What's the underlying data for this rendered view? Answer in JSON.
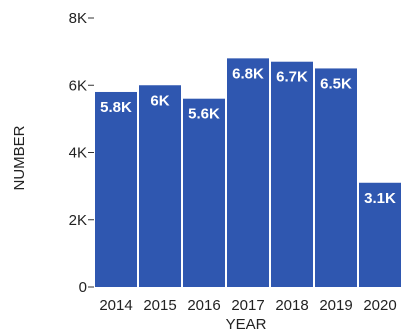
{
  "chart_data": {
    "type": "bar",
    "xlabel": "YEAR",
    "ylabel": "NUMBER",
    "categories": [
      "2014",
      "2015",
      "2016",
      "2017",
      "2018",
      "2019",
      "2020"
    ],
    "values": [
      5800,
      6000,
      5600,
      6800,
      6700,
      6500,
      3100
    ],
    "data_labels": [
      "5.8K",
      "6K",
      "5.6K",
      "6.8K",
      "6.7K",
      "6.5K",
      "3.1K"
    ],
    "ylim": [
      0,
      8000
    ],
    "yticks": [
      0,
      2000,
      4000,
      6000,
      8000
    ],
    "ytick_labels": [
      "0",
      "2K",
      "4K",
      "6K",
      "8K"
    ],
    "grid": false,
    "bar_color": "#2f57b0"
  }
}
